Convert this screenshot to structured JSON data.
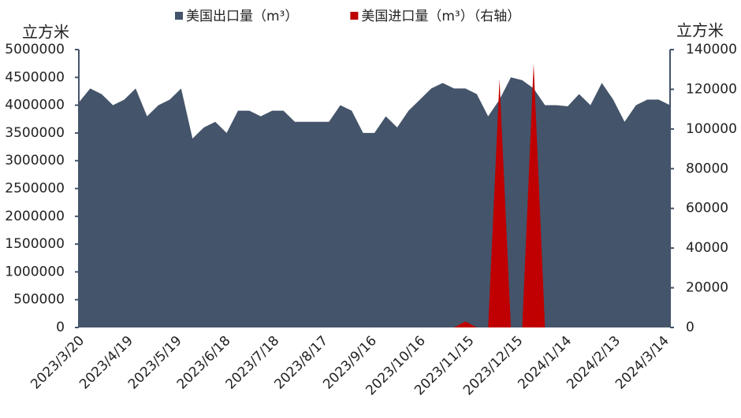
{
  "chart_data": {
    "type": "area",
    "legend_position": "top",
    "y_label": "立方米",
    "y2_label": "立方米",
    "x": [
      "2023/3/20",
      "2023/3/27",
      "2023/4/3",
      "2023/4/10",
      "2023/4/17",
      "2023/4/24",
      "2023/5/1",
      "2023/5/8",
      "2023/5/15",
      "2023/5/22",
      "2023/5/29",
      "2023/6/5",
      "2023/6/12",
      "2023/6/19",
      "2023/6/26",
      "2023/7/3",
      "2023/7/10",
      "2023/7/17",
      "2023/7/24",
      "2023/7/31",
      "2023/8/7",
      "2023/8/14",
      "2023/8/21",
      "2023/8/28",
      "2023/9/4",
      "2023/9/11",
      "2023/9/18",
      "2023/9/25",
      "2023/10/2",
      "2023/10/9",
      "2023/10/16",
      "2023/10/23",
      "2023/10/30",
      "2023/11/6",
      "2023/11/13",
      "2023/11/20",
      "2023/11/27",
      "2023/12/4",
      "2023/12/11",
      "2023/12/18",
      "2023/12/25",
      "2024/1/1",
      "2024/1/8",
      "2024/1/15",
      "2024/1/22",
      "2024/1/29",
      "2024/2/5",
      "2024/2/12",
      "2024/2/19",
      "2024/2/26",
      "2024/3/4",
      "2024/3/11",
      "2024/3/18"
    ],
    "xlim": [
      "2023/3/20",
      "2024/3/18"
    ],
    "xticks": [
      "2023/3/20",
      "2023/4/19",
      "2023/5/19",
      "2023/6/18",
      "2023/7/18",
      "2023/8/17",
      "2023/9/16",
      "2023/10/16",
      "2023/11/15",
      "2023/12/15",
      "2024/1/14",
      "2024/2/13",
      "2024/3/14"
    ],
    "series": [
      {
        "name": "美国出口量（m³）",
        "color": "#44546a",
        "axis": "y",
        "values": [
          4050000,
          4300000,
          4200000,
          4000000,
          4100000,
          4300000,
          3800000,
          4000000,
          4100000,
          4300000,
          3400000,
          3600000,
          3700000,
          3500000,
          3900000,
          3900000,
          3800000,
          3900000,
          3900000,
          3700000,
          3700000,
          3700000,
          3700000,
          4000000,
          3900000,
          3500000,
          3500000,
          3800000,
          3600000,
          3900000,
          4100000,
          4300000,
          4400000,
          4300000,
          4300000,
          4200000,
          3800000,
          4100000,
          4500000,
          4450000,
          4300000,
          4000000,
          4000000,
          3980000,
          4200000,
          4000000,
          4400000,
          4100000,
          3700000,
          4000000,
          4100000,
          4100000,
          4000000
        ]
      },
      {
        "name": "美国进口量（m³）（右轴）",
        "color": "#c00000",
        "axis": "y2",
        "values": [
          0,
          0,
          0,
          0,
          0,
          0,
          0,
          0,
          0,
          0,
          0,
          0,
          0,
          0,
          0,
          0,
          0,
          0,
          0,
          0,
          0,
          0,
          0,
          0,
          0,
          0,
          0,
          0,
          0,
          0,
          0,
          0,
          0,
          0,
          3000,
          0,
          0,
          125000,
          0,
          0,
          133000,
          0,
          0,
          0,
          0,
          0,
          0,
          0,
          0,
          0,
          0,
          0,
          0
        ]
      }
    ],
    "ylim": [
      0,
      5000000
    ],
    "yticks": [
      0,
      500000,
      1000000,
      1500000,
      2000000,
      2500000,
      3000000,
      3500000,
      4000000,
      4500000,
      5000000
    ],
    "y2lim": [
      0,
      140000
    ],
    "y2ticks": [
      0,
      20000,
      40000,
      60000,
      80000,
      100000,
      120000,
      140000
    ]
  }
}
